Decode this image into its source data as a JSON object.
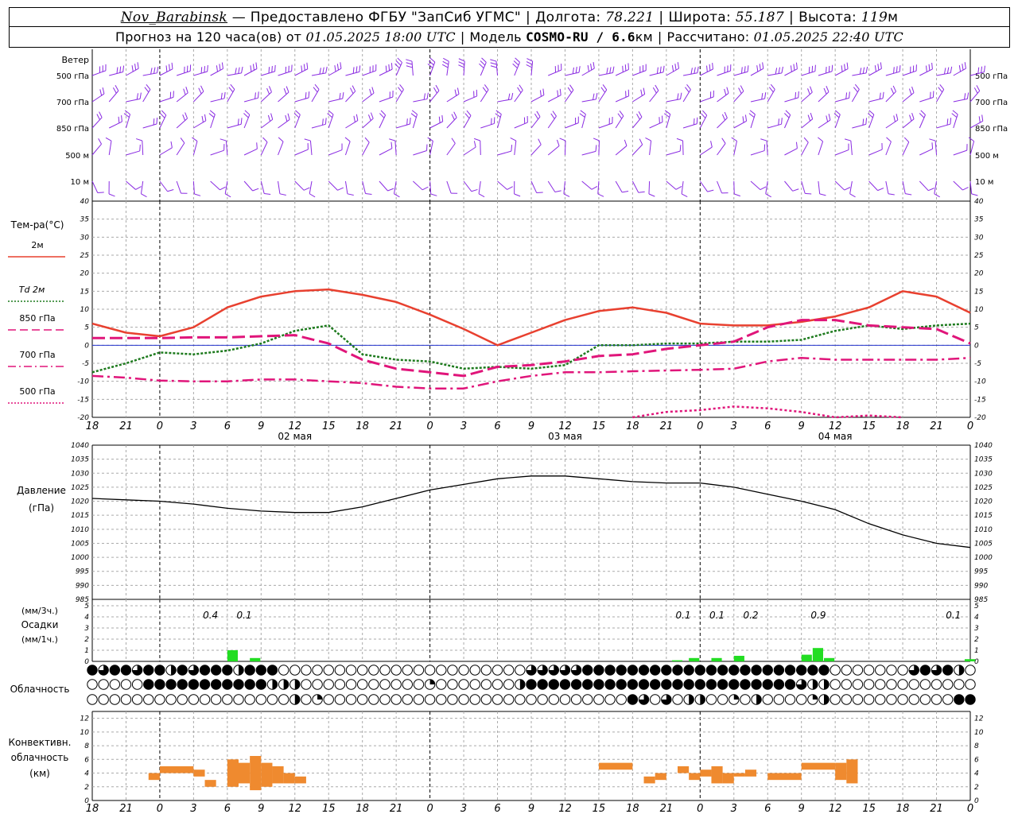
{
  "header": {
    "station": "Nov_Barabinsk",
    "provider": "— Предоставлено ФГБУ \"ЗапСиб УГМС\"",
    "lon_label": "Долгота:",
    "lon_value": "78.221",
    "lat_label": "Широта:",
    "lat_value": "55.187",
    "alt_label": "Высота:",
    "alt_value": "119",
    "alt_unit": "м",
    "forecast_label": "Прогноз на 120 часа(ов) от",
    "forecast_start": "01.05.2025 18:00 UTC",
    "model_label": "Модель",
    "model_value": "COSMO-RU / 6.6",
    "model_unit": "км",
    "calc_label": "Рассчитано:",
    "calc_value": "01.05.2025 22:40 UTC"
  },
  "x_ticks": [
    "18",
    "21",
    "0",
    "3",
    "6",
    "9",
    "12",
    "15",
    "18",
    "21",
    "0",
    "3",
    "6",
    "9",
    "12",
    "15",
    "18",
    "21",
    "0",
    "3",
    "6",
    "9",
    "12",
    "15",
    "18",
    "21",
    "0"
  ],
  "date_labels": [
    "02 мая",
    "03 мая",
    "04 мая"
  ],
  "wind_panel": {
    "title": "Ветер",
    "levels": [
      "500 гПа",
      "700 гПа",
      "850 гПа",
      "500 м",
      "10 м"
    ]
  },
  "temp_panel": {
    "title": "Тем-ра(°C)",
    "legend": [
      {
        "label": "2м",
        "color": "#e8402f",
        "style": "solid"
      },
      {
        "label": "Td 2м",
        "color": "#1d7a1d",
        "style": "dotted"
      },
      {
        "label": "850 гПа",
        "color": "#e0157a",
        "style": "dashed"
      },
      {
        "label": "700 гПа",
        "color": "#e0157a",
        "style": "dashdot"
      },
      {
        "label": "500 гПа",
        "color": "#e0157a",
        "style": "dotted"
      }
    ],
    "ticks": [
      40,
      35,
      30,
      25,
      20,
      15,
      10,
      5,
      0,
      -5,
      -10,
      -15,
      -20
    ]
  },
  "pressure_panel": {
    "title1": "Давление",
    "title2": "(гПа)",
    "ticks": [
      1040,
      1035,
      1030,
      1025,
      1020,
      1015,
      1010,
      1005,
      1000,
      995,
      990,
      985
    ]
  },
  "precip_panel": {
    "unit1": "(мм/3ч.)",
    "title": "Осадки",
    "unit2": "(мм/1ч.)",
    "ticks": [
      5,
      4,
      3,
      2,
      1,
      0
    ],
    "labels": [
      "0.4",
      "0.1",
      "0.1",
      "0.1",
      "0.2",
      "0.9",
      "0.1"
    ]
  },
  "cloud_panel": {
    "title": "Облачность"
  },
  "conv_panel": {
    "title1": "Конвективн.",
    "title2": "облачность",
    "title3": "(км)",
    "ticks": [
      12,
      10,
      8,
      6,
      4,
      2,
      0
    ]
  },
  "chart_data": [
    {
      "type": "line",
      "title": "Тем-ра(°C)",
      "ylim": [
        -20,
        40
      ],
      "x_hours": [
        0,
        3,
        6,
        9,
        12,
        15,
        18,
        21,
        24,
        27,
        30,
        33,
        36,
        39,
        42,
        45,
        48,
        51,
        54,
        57,
        60,
        63,
        66,
        69,
        72,
        75,
        78
      ],
      "series": [
        {
          "name": "2м",
          "color": "#e8402f",
          "values": [
            6,
            3.5,
            2.5,
            5,
            10.5,
            13.5,
            15,
            15.5,
            14,
            12,
            8.5,
            4.5,
            0,
            3.5,
            7,
            9.5,
            10.5,
            9,
            6,
            5.5,
            5.5,
            6.5,
            8,
            10.5,
            15,
            13.5,
            9
          ]
        },
        {
          "name": "Td 2м",
          "color": "#1d7a1d",
          "values": [
            -7.5,
            -5,
            -2,
            -2.5,
            -1.5,
            0.5,
            4,
            5.5,
            -2.5,
            -4,
            -4.5,
            -6.5,
            -6,
            -6.5,
            -5.5,
            0,
            0,
            0.5,
            0.5,
            1,
            1,
            1.5,
            4,
            5.5,
            4.5,
            5.5,
            6
          ]
        },
        {
          "name": "850 гПа",
          "color": "#e0157a",
          "values": [
            2,
            2,
            2,
            2.2,
            2.2,
            2.5,
            2.8,
            0.5,
            -4,
            -6.5,
            -7.5,
            -8.5,
            -6,
            -5.5,
            -4.5,
            -3,
            -2.5,
            -1,
            0,
            1,
            5,
            7,
            7,
            5.5,
            5,
            4.5,
            0.5
          ]
        },
        {
          "name": "700 гПа",
          "color": "#e0157a",
          "values": [
            -8.5,
            -9,
            -9.8,
            -10,
            -10,
            -9.5,
            -9.5,
            -10,
            -10.5,
            -11.5,
            -12,
            -12,
            -10,
            -8.5,
            -7.5,
            -7.5,
            -7.2,
            -7,
            -6.8,
            -6.5,
            -4.5,
            -3.5,
            -4,
            -4,
            -4,
            -4,
            -3.5
          ]
        },
        {
          "name": "500 гПа",
          "color": "#e0157a",
          "values": [
            null,
            null,
            null,
            null,
            null,
            null,
            null,
            null,
            null,
            null,
            null,
            null,
            null,
            null,
            null,
            null,
            -20,
            -18.5,
            -18,
            -17,
            -17.5,
            -18.5,
            -20,
            -19.5,
            -20,
            null,
            null
          ]
        }
      ]
    },
    {
      "type": "line",
      "title": "Давление (гПа)",
      "ylim": [
        985,
        1040
      ],
      "x_hours": [
        0,
        3,
        6,
        9,
        12,
        15,
        18,
        21,
        24,
        27,
        30,
        33,
        36,
        39,
        42,
        45,
        48,
        51,
        54,
        57,
        60,
        63,
        66,
        69,
        72,
        75,
        78
      ],
      "series": [
        {
          "name": "Давление",
          "color": "#000000",
          "values": [
            1021,
            1020.5,
            1020,
            1019,
            1017.5,
            1016.5,
            1016,
            1016,
            1018,
            1021,
            1024,
            1026,
            1028,
            1029,
            1029,
            1028,
            1027,
            1026.5,
            1026.5,
            1025,
            1022.5,
            1020,
            1017,
            1012,
            1008,
            1005,
            1003.5
          ]
        }
      ]
    },
    {
      "type": "bar",
      "title": "Осадки",
      "bars_1h": [
        {
          "hour": 12,
          "value": 1
        },
        {
          "hour": 14,
          "value": 0.3
        },
        {
          "hour": 51.5,
          "value": 0.1
        },
        {
          "hour": 53,
          "value": 0.3
        },
        {
          "hour": 55,
          "value": 0.3
        },
        {
          "hour": 57,
          "value": 0.5
        },
        {
          "hour": 63,
          "value": 0.6
        },
        {
          "hour": 64,
          "value": 1.2
        },
        {
          "hour": 65,
          "value": 0.3
        },
        {
          "hour": 77.5,
          "value": 0.2
        }
      ],
      "labels_3h": [
        {
          "hour": 10.5,
          "text": "0.4"
        },
        {
          "hour": 13.5,
          "text": "0.1"
        },
        {
          "hour": 52.5,
          "text": "0.1"
        },
        {
          "hour": 55.5,
          "text": "0.1"
        },
        {
          "hour": 58.5,
          "text": "0.2"
        },
        {
          "hour": 64.5,
          "text": "0.9"
        },
        {
          "hour": 76.5,
          "text": "0.1"
        }
      ]
    },
    {
      "type": "bar",
      "title": "Конвективн. облачность (км)",
      "ylim": [
        0,
        13
      ],
      "bars": [
        {
          "from": 5,
          "to": 6,
          "base": 3,
          "top": 4
        },
        {
          "from": 6,
          "to": 9,
          "base": 4,
          "top": 5
        },
        {
          "from": 9,
          "to": 10,
          "base": 3.5,
          "top": 4.5
        },
        {
          "from": 10,
          "to": 11,
          "base": 2,
          "top": 3
        },
        {
          "from": 12,
          "to": 13,
          "base": 2,
          "top": 6
        },
        {
          "from": 13,
          "to": 14,
          "base": 2.5,
          "top": 5.5
        },
        {
          "from": 14,
          "to": 15,
          "base": 1.5,
          "top": 6.5
        },
        {
          "from": 15,
          "to": 16,
          "base": 2,
          "top": 5.5
        },
        {
          "from": 16,
          "to": 17,
          "base": 2.5,
          "top": 5
        },
        {
          "from": 17,
          "to": 18,
          "base": 2.5,
          "top": 4
        },
        {
          "from": 18,
          "to": 19,
          "base": 2.5,
          "top": 3.5
        },
        {
          "from": 45,
          "to": 48,
          "base": 4.5,
          "top": 5.5
        },
        {
          "from": 49,
          "to": 50,
          "base": 2.5,
          "top": 3.5
        },
        {
          "from": 50,
          "to": 51,
          "base": 3,
          "top": 4
        },
        {
          "from": 52,
          "to": 53,
          "base": 4,
          "top": 5
        },
        {
          "from": 53,
          "to": 54,
          "base": 3,
          "top": 4
        },
        {
          "from": 54,
          "to": 55,
          "base": 3.5,
          "top": 4.5
        },
        {
          "from": 55,
          "to": 56,
          "base": 2.5,
          "top": 5
        },
        {
          "from": 56,
          "to": 57,
          "base": 2.5,
          "top": 4
        },
        {
          "from": 57,
          "to": 58,
          "base": 3.5,
          "top": 4
        },
        {
          "from": 58,
          "to": 59,
          "base": 3.5,
          "top": 4.5
        },
        {
          "from": 60,
          "to": 63,
          "base": 3,
          "top": 4
        },
        {
          "from": 63,
          "to": 66,
          "base": 4.5,
          "top": 5.5
        },
        {
          "from": 66,
          "to": 67,
          "base": 3,
          "top": 5.5
        },
        {
          "from": 67,
          "to": 68,
          "base": 2.5,
          "top": 6
        }
      ]
    }
  ]
}
